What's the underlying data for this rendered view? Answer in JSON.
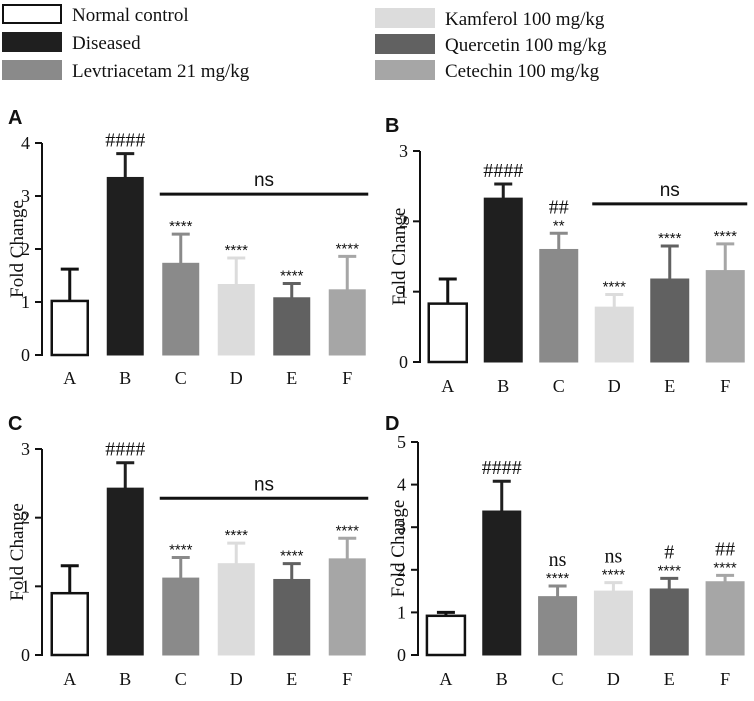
{
  "legend": {
    "items": [
      {
        "label": "Normal control",
        "color": "#ffffff",
        "border": "#111111"
      },
      {
        "label": "Diseased",
        "color": "#1f1f1f",
        "border": "#1f1f1f"
      },
      {
        "label": "Levtriacetam 21 mg/kg",
        "color": "#8a8a8a",
        "border": "#8a8a8a"
      },
      {
        "label": "Kamferol 100 mg/kg",
        "color": "#dcdcdc",
        "border": "#dcdcdc"
      },
      {
        "label": "Quercetin 100 mg/kg",
        "color": "#616161",
        "border": "#616161"
      },
      {
        "label": "Cetechin 100 mg/kg",
        "color": "#a6a6a6",
        "border": "#a6a6a6"
      }
    ]
  },
  "chart_data": [
    {
      "panel": "A",
      "type": "bar",
      "ylabel": "Fold Change",
      "ylim": [
        0,
        4
      ],
      "yticks": [
        "0",
        "1",
        "2",
        "3",
        "4"
      ],
      "categories": [
        "A",
        "B",
        "C",
        "D",
        "E",
        "F"
      ],
      "values": [
        1.02,
        3.35,
        1.73,
        1.33,
        1.08,
        1.23
      ],
      "errors": [
        0.6,
        0.45,
        0.55,
        0.5,
        0.27,
        0.63
      ],
      "stars": [
        "",
        "",
        "****",
        "****",
        "****",
        "****"
      ],
      "above": [
        "",
        "####",
        "",
        "",
        "",
        ""
      ],
      "bracket": {
        "from": "C",
        "to": "F",
        "label": "ns"
      }
    },
    {
      "panel": "B",
      "type": "bar",
      "ylabel": "Fold Change",
      "ylim": [
        0,
        3
      ],
      "yticks": [
        "0",
        "1",
        "2",
        "3"
      ],
      "categories": [
        "A",
        "B",
        "C",
        "D",
        "E",
        "F"
      ],
      "values": [
        0.83,
        2.33,
        1.6,
        0.78,
        1.18,
        1.3
      ],
      "errors": [
        0.35,
        0.2,
        0.23,
        0.18,
        0.47,
        0.38
      ],
      "stars": [
        "",
        "",
        "**",
        "****",
        "****",
        "****"
      ],
      "above": [
        "",
        "####",
        "##",
        "",
        "",
        ""
      ],
      "bracket": {
        "from": "D",
        "to": "F",
        "label": "ns"
      }
    },
    {
      "panel": "C",
      "type": "bar",
      "ylabel": "Fold Change",
      "ylim": [
        0,
        3
      ],
      "yticks": [
        "0",
        "1",
        "2",
        "3"
      ],
      "categories": [
        "A",
        "B",
        "C",
        "D",
        "E",
        "F"
      ],
      "values": [
        0.9,
        2.43,
        1.12,
        1.33,
        1.1,
        1.4
      ],
      "errors": [
        0.4,
        0.37,
        0.3,
        0.3,
        0.23,
        0.3
      ],
      "stars": [
        "",
        "",
        "****",
        "****",
        "****",
        "****"
      ],
      "above": [
        "",
        "####",
        "",
        "",
        "",
        ""
      ],
      "bracket": {
        "from": "C",
        "to": "F",
        "label": "ns"
      }
    },
    {
      "panel": "D",
      "type": "bar",
      "ylabel": "Fold Change",
      "ylim": [
        0,
        5
      ],
      "yticks": [
        "0",
        "1",
        "2",
        "3",
        "4",
        "5"
      ],
      "categories": [
        "A",
        "B",
        "C",
        "D",
        "E",
        "F"
      ],
      "values": [
        0.92,
        3.38,
        1.37,
        1.5,
        1.55,
        1.72
      ],
      "errors": [
        0.08,
        0.7,
        0.25,
        0.2,
        0.25,
        0.15
      ],
      "stars": [
        "",
        "",
        "****",
        "****",
        "****",
        "****"
      ],
      "above": [
        "",
        "####",
        "ns",
        "ns",
        "#",
        "##"
      ],
      "bracket": null
    }
  ]
}
